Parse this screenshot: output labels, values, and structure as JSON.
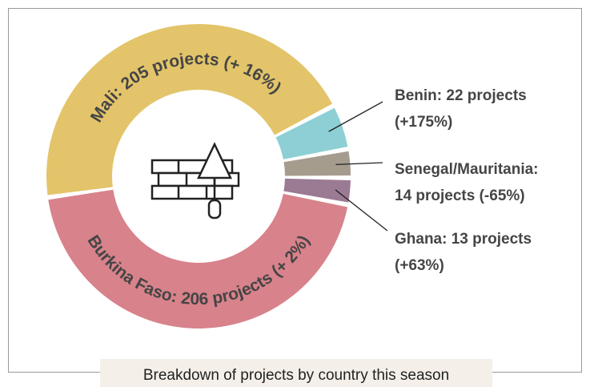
{
  "chart_data": {
    "type": "donut",
    "title": "Breakdown of projects by country this season",
    "values": [
      205,
      22,
      14,
      13,
      206
    ],
    "value_labels": [
      [
        "Mali: 205 projects (+ 16%)"
      ],
      [
        "Benin: 22 projects",
        "(+175%)"
      ],
      [
        "Senegal/Mauritania:",
        "14 projects (-65%)"
      ],
      [
        "Ghana: 13 projects",
        "(+63%)"
      ],
      [
        "Burkina Faso: 206 projects (+ 2%)"
      ]
    ],
    "colors": [
      "#e3c46a",
      "#8dcfd4",
      "#a59c8e",
      "#9b7a94",
      "#d8828b"
    ]
  }
}
